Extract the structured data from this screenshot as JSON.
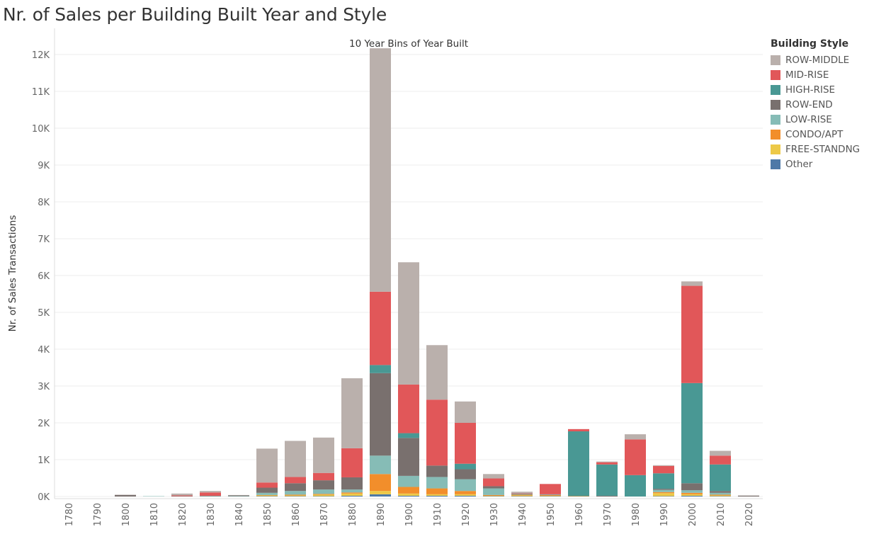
{
  "title": "Nr. of Sales per Building Built Year and Style",
  "chart_data": {
    "type": "bar",
    "stacked": true,
    "title": "Nr. of Sales per Building Built Year and Style",
    "subtitle": "10 Year Bins of Year Built",
    "xlabel": "",
    "ylabel": "Nr. of Sales Transactions",
    "ylim": [
      0,
      12500
    ],
    "yticks": [
      0,
      1000,
      2000,
      3000,
      4000,
      5000,
      6000,
      7000,
      8000,
      9000,
      10000,
      11000,
      12000
    ],
    "ytick_labels": [
      "0K",
      "1K",
      "2K",
      "3K",
      "4K",
      "5K",
      "6K",
      "7K",
      "8K",
      "9K",
      "10K",
      "11K",
      "12K"
    ],
    "grid": true,
    "legend_title": "Building Style",
    "legend_position": "right",
    "categories": [
      "1780",
      "1790",
      "1800",
      "1810",
      "1820",
      "1830",
      "1840",
      "1850",
      "1860",
      "1870",
      "1880",
      "1890",
      "1900",
      "1910",
      "1920",
      "1930",
      "1940",
      "1950",
      "1960",
      "1970",
      "1980",
      "1990",
      "2000",
      "2010",
      "2020"
    ],
    "series": [
      {
        "name": "Other",
        "color": "#4e79a7",
        "values": [
          0,
          0,
          0,
          0,
          0,
          0,
          0,
          10,
          10,
          10,
          20,
          60,
          20,
          20,
          20,
          10,
          10,
          10,
          0,
          0,
          0,
          10,
          20,
          10,
          0
        ]
      },
      {
        "name": "FREE-STANDNG",
        "color": "#edc948",
        "values": [
          0,
          0,
          0,
          0,
          0,
          0,
          0,
          20,
          20,
          40,
          60,
          90,
          60,
          40,
          40,
          10,
          20,
          10,
          0,
          0,
          0,
          80,
          40,
          20,
          0
        ]
      },
      {
        "name": "CONDO/APT",
        "color": "#f28e2b",
        "values": [
          0,
          0,
          0,
          0,
          0,
          0,
          0,
          10,
          20,
          20,
          30,
          460,
          180,
          160,
          90,
          20,
          20,
          20,
          10,
          0,
          0,
          30,
          40,
          20,
          0
        ]
      },
      {
        "name": "LOW-RISE",
        "color": "#86bcb6",
        "values": [
          0,
          0,
          0,
          10,
          0,
          10,
          10,
          60,
          100,
          120,
          80,
          500,
          300,
          310,
          320,
          180,
          10,
          10,
          0,
          0,
          0,
          60,
          70,
          50,
          0
        ]
      },
      {
        "name": "ROW-END",
        "color": "#79706e",
        "values": [
          0,
          0,
          40,
          0,
          10,
          10,
          20,
          140,
          210,
          250,
          330,
          2240,
          1030,
          310,
          270,
          60,
          20,
          10,
          0,
          20,
          0,
          30,
          190,
          50,
          20
        ]
      },
      {
        "name": "HIGH-RISE",
        "color": "#499894",
        "values": [
          0,
          0,
          0,
          0,
          0,
          0,
          0,
          0,
          0,
          0,
          0,
          220,
          130,
          0,
          150,
          0,
          0,
          0,
          1760,
          850,
          580,
          420,
          2720,
          720,
          0
        ]
      },
      {
        "name": "MID-RISE",
        "color": "#e15759",
        "values": [
          0,
          0,
          0,
          0,
          20,
          90,
          0,
          140,
          170,
          200,
          790,
          1990,
          1320,
          1790,
          1110,
          210,
          10,
          280,
          60,
          60,
          970,
          200,
          2640,
          240,
          0
        ]
      },
      {
        "name": "ROW-MIDDLE",
        "color": "#bab0ac",
        "values": [
          0,
          0,
          10,
          0,
          50,
          40,
          10,
          920,
          980,
          960,
          1900,
          6610,
          3320,
          1480,
          580,
          120,
          40,
          0,
          0,
          20,
          140,
          20,
          120,
          130,
          10
        ]
      }
    ]
  },
  "legend": {
    "title": "Building Style",
    "items": [
      {
        "label": "ROW-MIDDLE",
        "color": "#bab0ac"
      },
      {
        "label": "MID-RISE",
        "color": "#e15759"
      },
      {
        "label": "HIGH-RISE",
        "color": "#499894"
      },
      {
        "label": "ROW-END",
        "color": "#79706e"
      },
      {
        "label": "LOW-RISE",
        "color": "#86bcb6"
      },
      {
        "label": "CONDO/APT",
        "color": "#f28e2b"
      },
      {
        "label": "FREE-STANDNG",
        "color": "#edc948"
      },
      {
        "label": "Other",
        "color": "#4e79a7"
      }
    ]
  }
}
